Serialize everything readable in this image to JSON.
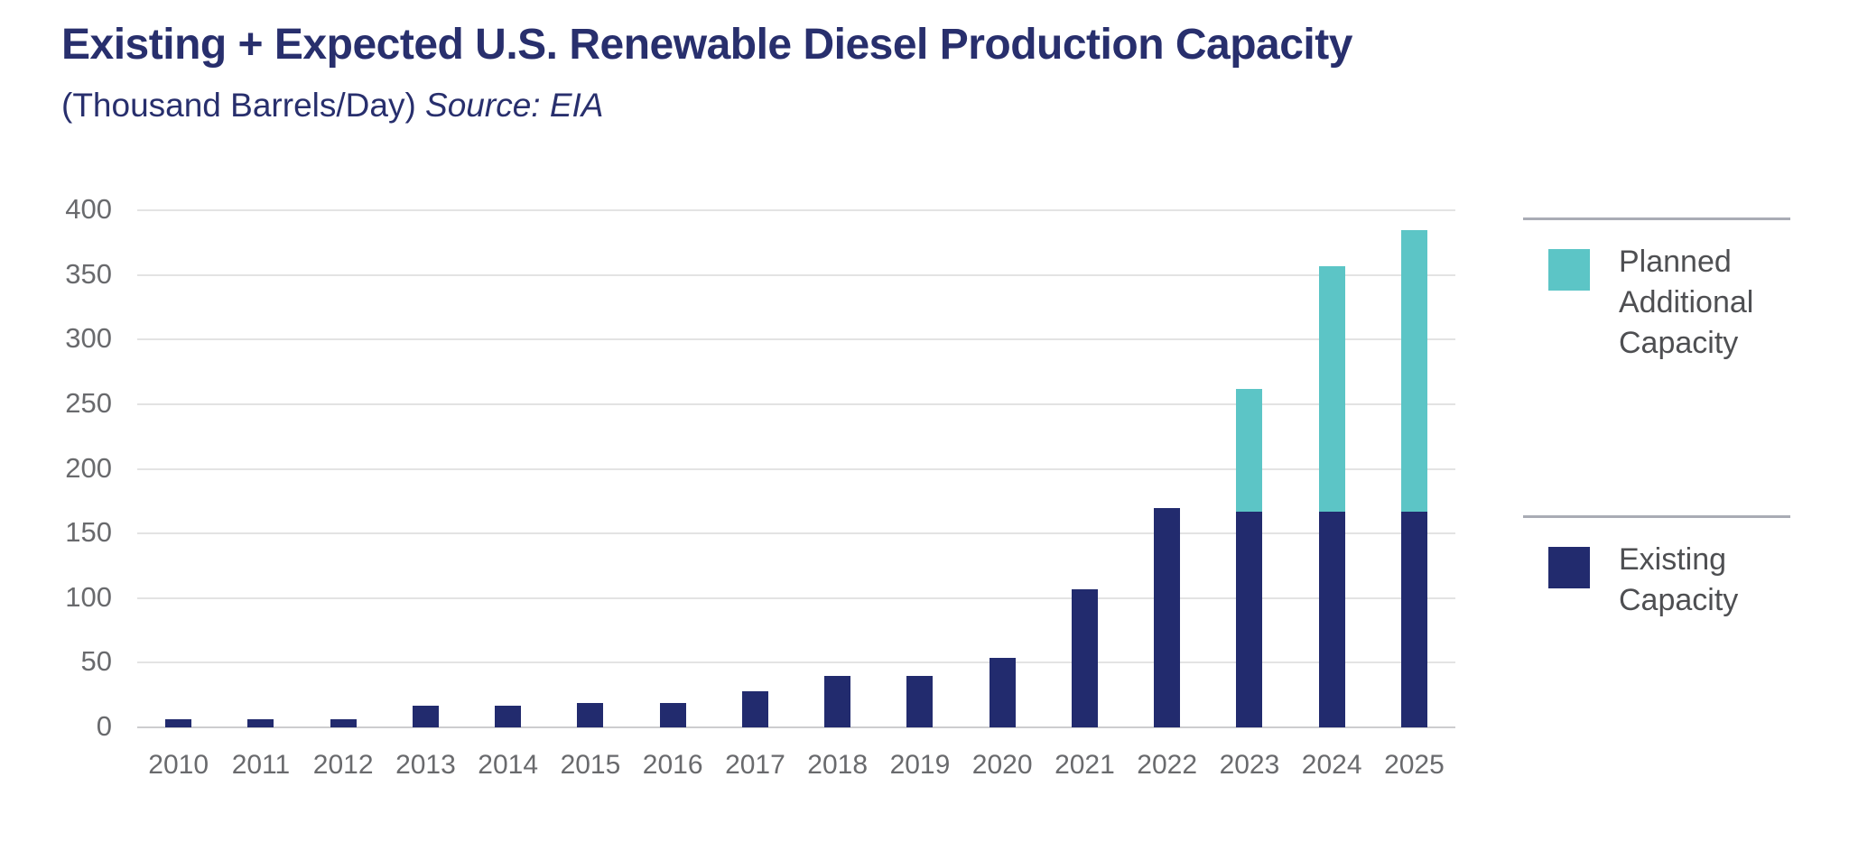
{
  "header": {
    "title": "Existing + Expected U.S. Renewable Diesel Production Capacity",
    "subtitle_prefix": "(Thousand Barrels/Day) ",
    "subtitle_source": "Source: EIA"
  },
  "chart_data": {
    "type": "bar",
    "stacked": true,
    "title": "Existing + Expected U.S. Renewable Diesel Production Capacity",
    "units_label": "(Thousand Barrels/Day)",
    "source_label": "Source: EIA",
    "categories": [
      "2010",
      "2011",
      "2012",
      "2013",
      "2014",
      "2015",
      "2016",
      "2017",
      "2018",
      "2019",
      "2020",
      "2021",
      "2022",
      "2023",
      "2024",
      "2025"
    ],
    "series": [
      {
        "name": "Existing Capacity",
        "color": "#222B6E",
        "values": [
          6,
          6,
          6,
          17,
          17,
          19,
          19,
          28,
          40,
          40,
          54,
          107,
          170,
          167,
          167,
          167
        ]
      },
      {
        "name": "Planned Additional Capacity",
        "color": "#5CC5C6",
        "values": [
          0,
          0,
          0,
          0,
          0,
          0,
          0,
          0,
          0,
          0,
          0,
          0,
          0,
          95,
          190,
          218
        ]
      }
    ],
    "stack_totals": [
      6,
      6,
      6,
      17,
      17,
      19,
      19,
      28,
      40,
      40,
      54,
      107,
      170,
      262,
      357,
      385
    ],
    "ylim": [
      0,
      400
    ],
    "ytick_step": 50,
    "ytick_labels": [
      "0",
      "50",
      "100",
      "150",
      "200",
      "250",
      "300",
      "350",
      "400"
    ],
    "grid": "horizontal",
    "legend_position": "right"
  },
  "legend": {
    "items": [
      {
        "label": "Planned\nAdditional\nCapacity",
        "color": "#5CC5C6",
        "series": "Planned Additional Capacity"
      },
      {
        "label": "Existing\nCapacity",
        "color": "#222B6E",
        "series": "Existing Capacity"
      }
    ]
  },
  "colors": {
    "title": "#282F6D",
    "existing_bar": "#222B6E",
    "planned_bar": "#5CC5C6",
    "gridline": "#E3E3E3",
    "axis_line": "#CDCDCF",
    "tick_text": "#696A6D",
    "legend_text": "#4E4F52",
    "legend_rule": "#A9ACB5"
  }
}
